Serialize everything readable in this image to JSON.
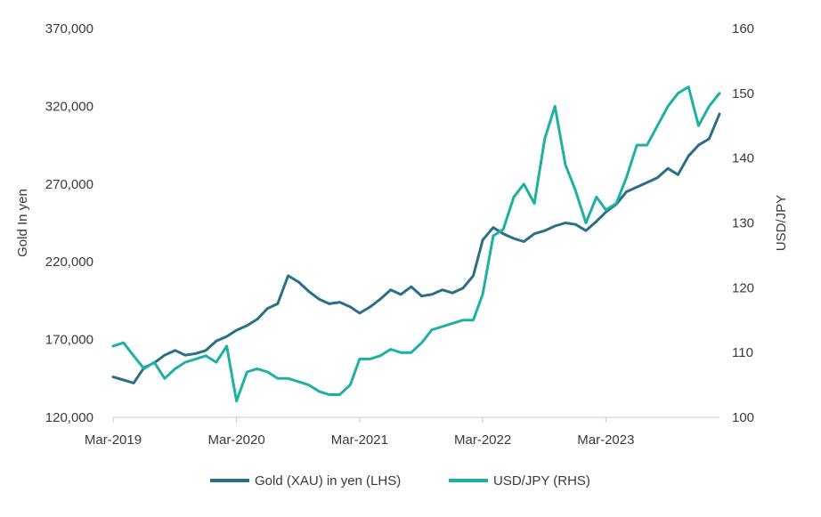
{
  "chart_data": {
    "type": "line",
    "title": "",
    "ylabel_left": "Gold In yen",
    "ylabel_right": "USD/JPY",
    "x_ticks": [
      "Mar-2019",
      "Mar-2020",
      "Mar-2021",
      "Mar-2022",
      "Mar-2023"
    ],
    "y_left": {
      "min": 120000,
      "max": 370000,
      "ticks": [
        "120,000",
        "170,000",
        "220,000",
        "270,000",
        "320,000",
        "370,000"
      ]
    },
    "y_right": {
      "min": 100,
      "max": 160,
      "ticks": [
        "100",
        "110",
        "120",
        "130",
        "140",
        "150",
        "160"
      ]
    },
    "legend_position": "bottom",
    "series": [
      {
        "name": "Gold (XAU) in yen (LHS)",
        "axis": "left",
        "color": "#2a6f84",
        "x": [
          "2019-03",
          "2019-04",
          "2019-05",
          "2019-06",
          "2019-07",
          "2019-08",
          "2019-09",
          "2019-10",
          "2019-11",
          "2019-12",
          "2020-01",
          "2020-02",
          "2020-03",
          "2020-04",
          "2020-05",
          "2020-06",
          "2020-07",
          "2020-08",
          "2020-09",
          "2020-10",
          "2020-11",
          "2020-12",
          "2021-01",
          "2021-02",
          "2021-03",
          "2021-04",
          "2021-05",
          "2021-06",
          "2021-07",
          "2021-08",
          "2021-09",
          "2021-10",
          "2021-11",
          "2021-12",
          "2022-01",
          "2022-02",
          "2022-03",
          "2022-04",
          "2022-05",
          "2022-06",
          "2022-07",
          "2022-08",
          "2022-09",
          "2022-10",
          "2022-11",
          "2022-12",
          "2023-01",
          "2023-02",
          "2023-03",
          "2023-04",
          "2023-05",
          "2023-06",
          "2023-07",
          "2023-08",
          "2023-09",
          "2023-10",
          "2023-11",
          "2023-12",
          "2024-01",
          "2024-02"
        ],
        "values": [
          146000,
          144000,
          142000,
          152000,
          155000,
          160000,
          163000,
          160000,
          161000,
          163000,
          169000,
          172000,
          176000,
          179000,
          183000,
          190000,
          193000,
          211000,
          207000,
          201000,
          196000,
          193000,
          194000,
          191000,
          187000,
          191000,
          196000,
          202000,
          199000,
          204000,
          198000,
          199000,
          202000,
          200000,
          203000,
          211000,
          234000,
          242000,
          238000,
          235000,
          233000,
          238000,
          240000,
          243000,
          245000,
          244000,
          240000,
          246000,
          252000,
          257000,
          265000,
          268000,
          271000,
          274000,
          280000,
          276000,
          288000,
          295000,
          299000,
          315000
        ]
      },
      {
        "name": "USD/JPY (RHS)",
        "axis": "right",
        "color": "#1fb0a4",
        "x": [
          "2019-03",
          "2019-04",
          "2019-05",
          "2019-06",
          "2019-07",
          "2019-08",
          "2019-09",
          "2019-10",
          "2019-11",
          "2019-12",
          "2020-01",
          "2020-02",
          "2020-03",
          "2020-04",
          "2020-05",
          "2020-06",
          "2020-07",
          "2020-08",
          "2020-09",
          "2020-10",
          "2020-11",
          "2020-12",
          "2021-01",
          "2021-02",
          "2021-03",
          "2021-04",
          "2021-05",
          "2021-06",
          "2021-07",
          "2021-08",
          "2021-09",
          "2021-10",
          "2021-11",
          "2021-12",
          "2022-01",
          "2022-02",
          "2022-03",
          "2022-04",
          "2022-05",
          "2022-06",
          "2022-07",
          "2022-08",
          "2022-09",
          "2022-10",
          "2022-11",
          "2022-12",
          "2023-01",
          "2023-02",
          "2023-03",
          "2023-04",
          "2023-05",
          "2023-06",
          "2023-07",
          "2023-08",
          "2023-09",
          "2023-10",
          "2023-11",
          "2023-12",
          "2024-01",
          "2024-02"
        ],
        "values": [
          111,
          111.5,
          109.5,
          107.5,
          108.5,
          106,
          107.5,
          108.5,
          109,
          109.5,
          108.5,
          111,
          102.5,
          107,
          107.5,
          107,
          106,
          106,
          105.5,
          105,
          104,
          103.5,
          103.5,
          105,
          109,
          109,
          109.5,
          110.5,
          110,
          110,
          111.5,
          113.5,
          114,
          114.5,
          115,
          115,
          119,
          128,
          129,
          134,
          136,
          133,
          143,
          148,
          139,
          135,
          130,
          134,
          132,
          133,
          137,
          142,
          142,
          145,
          148,
          150,
          151,
          145,
          148,
          150
        ]
      }
    ]
  }
}
